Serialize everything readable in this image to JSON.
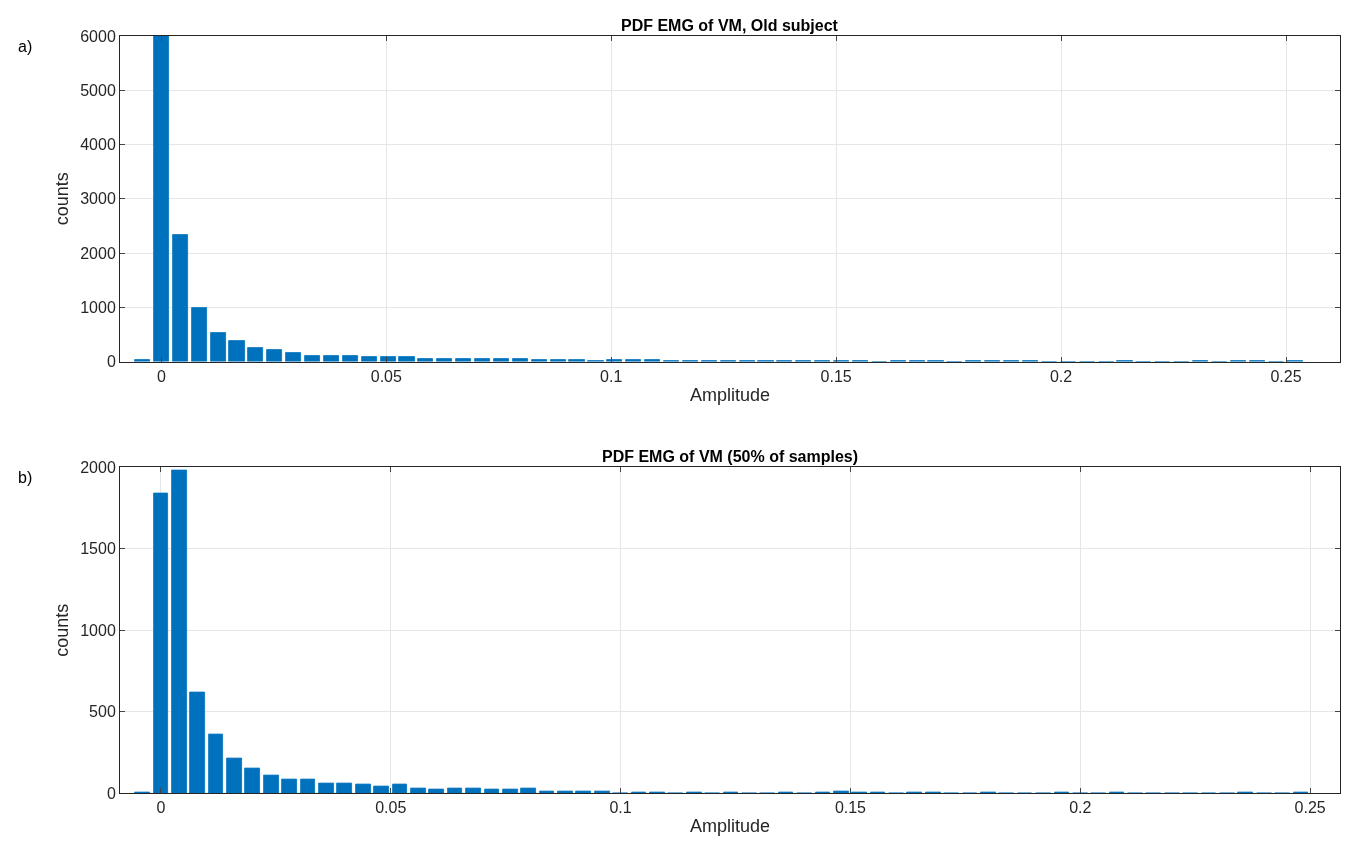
{
  "chart_data": [
    {
      "type": "histogram",
      "title": "PDF EMG of VM, Old subject",
      "xlabel": "Amplitude",
      "ylabel": "counts",
      "annotations": [
        "a)"
      ],
      "color": "#0072bd",
      "grid": true,
      "bins": [
        -0.0063,
        -0.0021,
        0.0021,
        0.0063,
        0.0105,
        0.0147,
        0.0189,
        0.0231,
        0.0273,
        0.0315,
        0.0357,
        0.0399,
        0.0441,
        0.0483,
        0.0525,
        0.0567,
        0.0609,
        0.0651,
        0.0693,
        0.0735,
        0.0777,
        0.0819,
        0.0861,
        0.0903,
        0.0945,
        0.0987,
        0.1029,
        0.1071,
        0.1113,
        0.1155,
        0.1197,
        0.1239,
        0.1281,
        0.1323,
        0.1365,
        0.1407,
        0.1449,
        0.1491,
        0.1533,
        0.1575,
        0.1617,
        0.1659,
        0.1701,
        0.1743,
        0.1785,
        0.1827,
        0.1869,
        0.1911,
        0.1953,
        0.1995,
        0.2037,
        0.2079,
        0.2121,
        0.2163,
        0.2205,
        0.2247,
        0.2289,
        0.2331,
        0.2373,
        0.2415,
        0.2457,
        0.2499,
        0.2541
      ],
      "values": [
        20,
        6000,
        2330,
        990,
        520,
        380,
        250,
        220,
        150,
        110,
        100,
        100,
        90,
        80,
        80,
        50,
        50,
        40,
        40,
        40,
        40,
        20,
        20,
        30,
        10,
        20,
        20,
        20,
        10,
        5,
        5,
        5,
        5,
        5,
        5,
        5,
        5,
        5,
        5,
        0,
        5,
        5,
        5,
        0,
        5,
        5,
        5,
        5,
        0,
        0,
        0,
        0,
        5,
        0,
        0,
        0,
        5,
        0,
        5,
        5,
        0,
        5
      ],
      "xlim": [
        -0.0092,
        0.262
      ],
      "xticks": [
        0,
        0.05,
        0.1,
        0.15,
        0.2,
        0.25
      ],
      "ylim": [
        0,
        6000
      ],
      "yticks": [
        0,
        1000,
        2000,
        3000,
        4000,
        5000,
        6000
      ]
    },
    {
      "type": "histogram",
      "title": "PDF EMG of VM (50% of samples)",
      "xlabel": "Amplitude",
      "ylabel": "counts",
      "annotations": [
        "b)"
      ],
      "color": "#0072bd",
      "grid": true,
      "bins": [
        -0.006,
        -0.002,
        0.002,
        0.006,
        0.01,
        0.014,
        0.018,
        0.022,
        0.026,
        0.03,
        0.034,
        0.038,
        0.042,
        0.046,
        0.05,
        0.054,
        0.058,
        0.062,
        0.066,
        0.07,
        0.074,
        0.078,
        0.082,
        0.086,
        0.09,
        0.094,
        0.098,
        0.102,
        0.106,
        0.11,
        0.114,
        0.118,
        0.122,
        0.126,
        0.13,
        0.134,
        0.138,
        0.142,
        0.146,
        0.15,
        0.154,
        0.158,
        0.162,
        0.166,
        0.17,
        0.174,
        0.178,
        0.182,
        0.186,
        0.19,
        0.194,
        0.198,
        0.202,
        0.206,
        0.21,
        0.214,
        0.218,
        0.222,
        0.226,
        0.23,
        0.234,
        0.238,
        0.242,
        0.246,
        0.25
      ],
      "values": [
        5,
        1840,
        1980,
        620,
        360,
        210,
        150,
        110,
        80,
        80,
        60,
        60,
        50,
        40,
        50,
        30,
        20,
        30,
        30,
        20,
        20,
        30,
        10,
        10,
        10,
        10,
        0,
        5,
        5,
        0,
        5,
        0,
        5,
        0,
        0,
        5,
        0,
        5,
        10,
        5,
        5,
        0,
        5,
        5,
        0,
        0,
        5,
        0,
        0,
        0,
        5,
        0,
        0,
        5,
        0,
        0,
        0,
        0,
        0,
        0,
        5,
        0,
        0,
        5
      ],
      "xlim": [
        -0.0089,
        0.2565
      ],
      "xticks": [
        0,
        0.05,
        0.1,
        0.15,
        0.2,
        0.25
      ],
      "ylim": [
        0,
        2000
      ],
      "yticks": [
        0,
        500,
        1000,
        1500,
        2000
      ]
    }
  ]
}
